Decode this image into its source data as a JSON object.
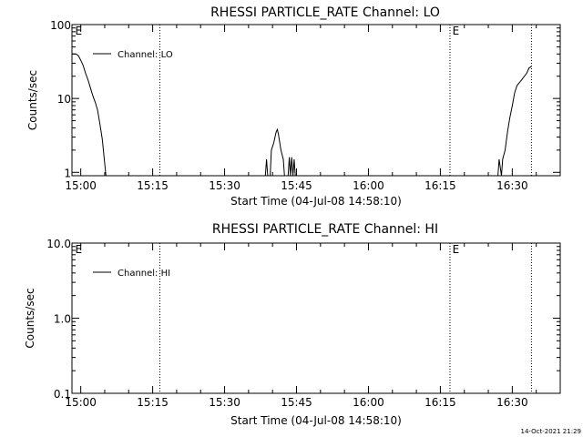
{
  "timestamp": "14-Oct-2021 21:29",
  "chart_data": [
    {
      "type": "line",
      "title": "RHESSI PARTICLE_RATE Channel: LO",
      "xlabel": "Start Time (04-Jul-08 14:58:10)",
      "ylabel": "Counts/sec",
      "yscale": "log",
      "ylim": [
        0.9,
        100
      ],
      "xlim": [
        "14:58:10",
        "16:40:00"
      ],
      "x_ticks": [
        "15:00",
        "15:15",
        "15:30",
        "15:45",
        "16:00",
        "16:15",
        "16:30"
      ],
      "y_ticks": [
        "1",
        "10",
        "100"
      ],
      "legend": {
        "label": "Channel: LO",
        "position": "top-left"
      },
      "event_lines": [
        "15:16:30",
        "16:17:00",
        "16:34:00"
      ],
      "event_markers": [
        {
          "label": "E",
          "time": "14:58:50"
        },
        {
          "label": "E",
          "time": "16:17:30"
        }
      ],
      "series": [
        {
          "name": "Channel: LO",
          "segments": [
            [
              [
                "14:58:10",
                40
              ],
              [
                "14:59:00",
                40
              ],
              [
                "14:59:30",
                38
              ],
              [
                "15:00:00",
                33
              ],
              [
                "15:00:30",
                28
              ],
              [
                "15:01:00",
                22
              ],
              [
                "15:01:30",
                18
              ],
              [
                "15:02:00",
                14
              ],
              [
                "15:02:30",
                11
              ],
              [
                "15:03:00",
                9
              ],
              [
                "15:03:30",
                7
              ],
              [
                "15:04:00",
                4.5
              ],
              [
                "15:04:30",
                2.8
              ],
              [
                "15:05:00",
                1.3
              ],
              [
                "15:05:15",
                0.9
              ]
            ],
            [
              [
                "15:38:30",
                0.9
              ],
              [
                "15:38:45",
                1.5
              ],
              [
                "15:39:00",
                0.9
              ]
            ],
            [
              [
                "15:39:30",
                0.9
              ],
              [
                "15:39:45",
                2
              ],
              [
                "15:40:15",
                2.5
              ],
              [
                "15:40:45",
                3.5
              ],
              [
                "15:41:00",
                3.8
              ],
              [
                "15:41:15",
                3.2
              ],
              [
                "15:41:45",
                2
              ],
              [
                "15:42:15",
                1.5
              ],
              [
                "15:42:30",
                0.9
              ]
            ],
            [
              [
                "15:43:15",
                0.9
              ],
              [
                "15:43:30",
                1.6
              ],
              [
                "15:43:45",
                0.9
              ],
              [
                "15:44:00",
                1.6
              ],
              [
                "15:44:15",
                0.9
              ],
              [
                "15:44:30",
                1.5
              ],
              [
                "15:44:45",
                0.9
              ]
            ],
            [
              [
                "16:27:00",
                0.9
              ],
              [
                "16:27:15",
                1.5
              ],
              [
                "16:27:45",
                0.9
              ],
              [
                "16:28:00",
                1.5
              ],
              [
                "16:28:30",
                2
              ],
              [
                "16:29:00",
                3.5
              ],
              [
                "16:29:30",
                5.5
              ],
              [
                "16:30:00",
                8
              ],
              [
                "16:30:30",
                12
              ],
              [
                "16:31:00",
                15
              ],
              [
                "16:32:00",
                18
              ],
              [
                "16:33:00",
                22
              ],
              [
                "16:33:30",
                26
              ],
              [
                "16:34:00",
                27
              ]
            ]
          ]
        }
      ]
    },
    {
      "type": "line",
      "title": "RHESSI PARTICLE_RATE Channel: HI",
      "xlabel": "Start Time (04-Jul-08 14:58:10)",
      "ylabel": "Counts/sec",
      "yscale": "log",
      "ylim": [
        0.1,
        10
      ],
      "xlim": [
        "14:58:10",
        "16:40:00"
      ],
      "x_ticks": [
        "15:00",
        "15:15",
        "15:30",
        "15:45",
        "16:00",
        "16:15",
        "16:30"
      ],
      "y_ticks": [
        "0.1",
        "1.0",
        "10.0"
      ],
      "legend": {
        "label": "Channel: HI",
        "position": "top-left"
      },
      "event_lines": [
        "15:16:30",
        "16:17:00",
        "16:34:00"
      ],
      "event_markers": [
        {
          "label": "E",
          "time": "14:58:50"
        },
        {
          "label": "E",
          "time": "16:17:30"
        }
      ],
      "series": [
        {
          "name": "Channel: HI",
          "segments": []
        }
      ]
    }
  ]
}
